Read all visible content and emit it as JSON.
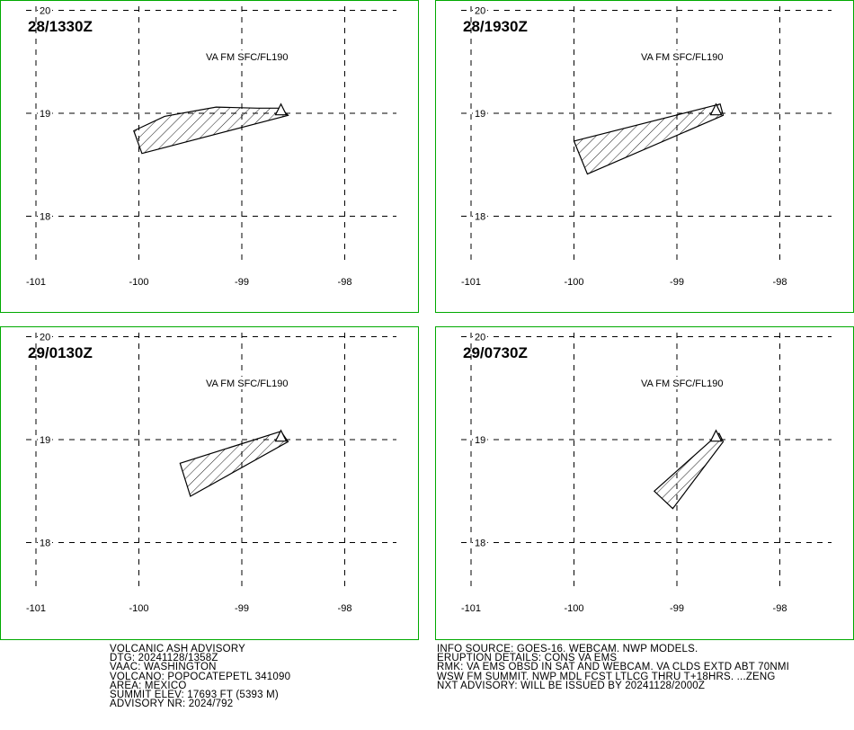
{
  "colors": {
    "panel_border": "#00aa00",
    "ink": "#000000",
    "background": "#ffffff"
  },
  "panels": [
    {
      "time": "28/1330Z",
      "label": "VA FM SFC/FL190",
      "lat_ticks": [
        "20",
        "19",
        "18"
      ],
      "lon_ticks": [
        "-101",
        "-100",
        "-99",
        "-98"
      ],
      "polygon": [
        [
          -100.05,
          18.83
        ],
        [
          -99.75,
          18.97
        ],
        [
          -99.25,
          19.06
        ],
        [
          -98.85,
          19.05
        ],
        [
          -98.62,
          19.05
        ],
        [
          -98.55,
          18.98
        ],
        [
          -99.97,
          18.61
        ]
      ]
    },
    {
      "time": "28/1930Z",
      "label": "VA FM SFC/FL190",
      "lat_ticks": [
        "20",
        "19",
        "18"
      ],
      "lon_ticks": [
        "-101",
        "-100",
        "-99",
        "-98"
      ],
      "polygon": [
        [
          -100.0,
          18.73
        ],
        [
          -98.58,
          19.09
        ],
        [
          -98.55,
          18.98
        ],
        [
          -99.87,
          18.41
        ]
      ]
    },
    {
      "time": "29/0130Z",
      "label": "VA FM SFC/FL190",
      "lat_ticks": [
        "20",
        "19",
        "18"
      ],
      "lon_ticks": [
        "-101",
        "-100",
        "-99",
        "-98"
      ],
      "polygon": [
        [
          -99.6,
          18.77
        ],
        [
          -98.62,
          19.08
        ],
        [
          -98.55,
          18.98
        ],
        [
          -99.5,
          18.45
        ]
      ]
    },
    {
      "time": "29/0730Z",
      "label": "VA FM SFC/FL190",
      "lat_ticks": [
        "20",
        "19",
        "18"
      ],
      "lon_ticks": [
        "-101",
        "-100",
        "-99",
        "-98"
      ],
      "polygon": [
        [
          -99.22,
          18.5
        ],
        [
          -98.59,
          19.06
        ],
        [
          -98.55,
          18.98
        ],
        [
          -99.04,
          18.33
        ]
      ]
    }
  ],
  "volcano": {
    "lon": -98.62,
    "lat": 19.02
  },
  "footer_left": [
    "VOLCANIC ASH ADVISORY",
    "DTG: 20241128/1358Z",
    "VAAC: WASHINGTON",
    "VOLCANO: POPOCATEPETL 341090",
    "AREA: MEXICO",
    "SUMMIT ELEV: 17693 FT (5393 M)",
    "ADVISORY NR: 2024/792"
  ],
  "footer_right": [
    "INFO SOURCE: GOES-16. WEBCAM. NWP MODELS.",
    "ERUPTION DETAILS: CONS VA EMS",
    "RMK: VA EMS OBSD IN SAT AND WEBCAM. VA CLDS EXTD ABT 70NMI",
    "WSW FM SUMMIT. NWP MDL FCST LTLCG THRU T+18HRS. ...ZENG",
    "NXT ADVISORY: WILL BE ISSUED BY 20241128/2000Z"
  ]
}
